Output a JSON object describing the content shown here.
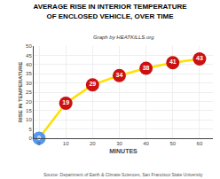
{
  "chart_data": {
    "type": "line",
    "title": "AVERAGE RISE IN INTERIOR TEMPERATURE\nOF ENCLOSED VEHICLE, OVER TIME",
    "subtitle": "Graph by HEATKILLS.org",
    "annotations": [
      "Source: Department of Earth & Climate Sciences, San Francisco State University"
    ],
    "xlabel": "MINUTES",
    "ylabel": "RISE IN TEMPERATURE",
    "x": [
      0,
      10,
      20,
      30,
      40,
      50,
      60
    ],
    "values": [
      0,
      19,
      29,
      34,
      38,
      41,
      43
    ],
    "color": "#FFE000",
    "colors": [
      "#5599EE",
      "#CC1111",
      "#CC1111",
      "#CC1111",
      "#CC1111",
      "#CC1111",
      "#CC1111"
    ],
    "marker": "circle",
    "data_labels": true,
    "grid": true,
    "xlim": [
      -2,
      65
    ],
    "xticks": [
      0,
      10,
      20,
      30,
      40,
      50,
      60
    ],
    "ylim": [
      0,
      50
    ],
    "yticks": [
      0,
      5,
      10,
      15,
      20,
      25,
      30,
      35,
      40,
      45,
      50
    ]
  }
}
